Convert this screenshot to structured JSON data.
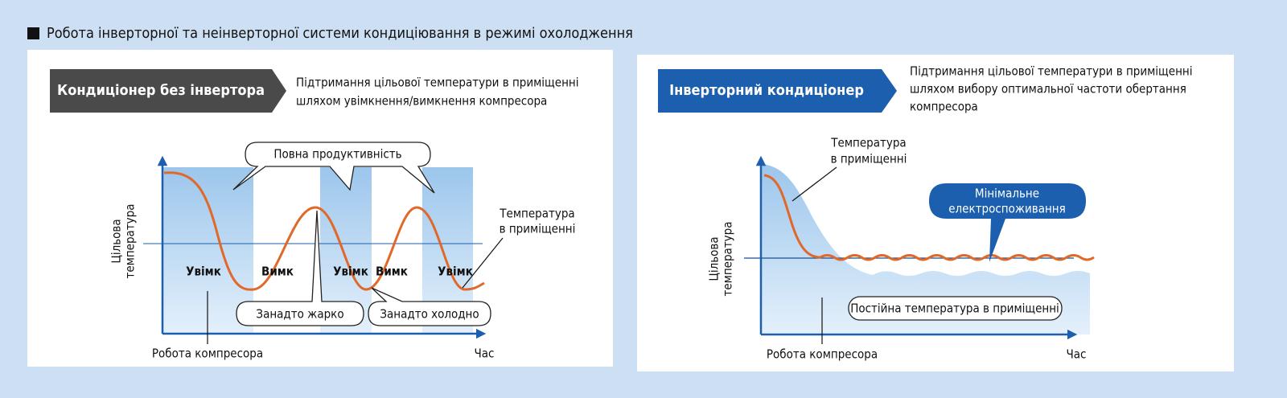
{
  "title": "Робота інверторної та неінверторної системи кондиціювання в режимі охолодження",
  "panels": [
    {
      "badge": "Кондиціонер без інвертора",
      "description": [
        "Підтримання цільової температури в приміщенні",
        "шляхом увімкнення/вимкнення компресора"
      ],
      "y_axis_label": [
        "Цільова",
        "температура"
      ],
      "x_axis_label": "Час",
      "compressor_label": "Робота компресора",
      "room_temp_label": [
        "Температура",
        "в приміщенні"
      ],
      "callouts": [
        "Повна продуктивність",
        "Занадто жарко",
        "Занадто холодно"
      ],
      "states": [
        "Увімк",
        "Вимк",
        "Увімк",
        "Вимк",
        "Увімк"
      ]
    },
    {
      "badge": "Інверторний кондиціонер",
      "description": [
        "Підтримання цільової температури в приміщенні",
        "шляхом вибору оптимальної частоти обертання",
        "компресора"
      ],
      "y_axis_label": [
        "Цільова",
        "температура"
      ],
      "x_axis_label": "Час",
      "compressor_label": "Робота компресора",
      "room_temp_label": [
        "Температура",
        "в приміщенні"
      ],
      "callouts": [
        [
          "Мінімальне",
          "електроспоживання"
        ],
        "Постійна температура в приміщенні"
      ]
    }
  ]
}
